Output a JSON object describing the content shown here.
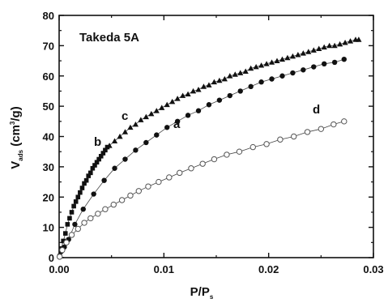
{
  "chart_data": {
    "type": "scatter",
    "title": "Takeda 5A",
    "xlabel": {
      "main": "P/P",
      "sub": "s"
    },
    "ylabel": {
      "main": "V",
      "sub": "ads",
      "unit_pre": " (cm",
      "unit_sup": "3",
      "unit_post": "/g)"
    },
    "xlim": [
      0,
      0.03
    ],
    "ylim": [
      0,
      80
    ],
    "xticks": [
      "0.00",
      "0.01",
      "0.02",
      "0.03"
    ],
    "yticks": [
      "0",
      "10",
      "20",
      "30",
      "40",
      "50",
      "60",
      "70",
      "80"
    ],
    "series_labels": [
      {
        "text": "a",
        "series": "a"
      },
      {
        "text": "b",
        "series": "b"
      },
      {
        "text": "c",
        "series": "c"
      },
      {
        "text": "d",
        "series": "d"
      }
    ],
    "series": [
      {
        "name": "a",
        "marker": "filled-circle",
        "x": [
          5e-05,
          0.0002,
          0.0005,
          0.0009,
          0.0015,
          0.0023,
          0.0033,
          0.0043,
          0.0053,
          0.0063,
          0.0073,
          0.0083,
          0.0093,
          0.0103,
          0.0113,
          0.0123,
          0.0133,
          0.0143,
          0.0153,
          0.0163,
          0.0173,
          0.0183,
          0.0193,
          0.0203,
          0.0213,
          0.0223,
          0.0233,
          0.0243,
          0.0253,
          0.0263,
          0.0272
        ],
        "y": [
          0.5,
          2,
          3.5,
          6,
          11,
          16,
          21,
          25.5,
          29.5,
          32.5,
          35.5,
          38,
          40.5,
          43,
          45,
          47,
          48.5,
          50.5,
          52,
          53.5,
          55,
          56.5,
          58,
          59,
          60,
          61,
          62,
          63,
          64,
          64.5,
          65.5
        ]
      },
      {
        "name": "b",
        "marker": "filled-square",
        "x": [
          5e-05,
          0.0002,
          0.0004,
          0.0006,
          0.0008,
          0.001,
          0.0012,
          0.0014,
          0.0016,
          0.0018,
          0.002,
          0.0022,
          0.0024,
          0.0026,
          0.0028,
          0.003,
          0.0032,
          0.0034,
          0.0036,
          0.0038,
          0.004,
          0.0042,
          0.0044,
          0.0046
        ],
        "y": [
          0.5,
          3,
          5.5,
          8,
          11,
          13,
          15,
          17,
          18.5,
          20,
          21.5,
          23,
          24.5,
          25.5,
          27,
          28,
          29.5,
          30.5,
          31.5,
          32.5,
          33.5,
          34.5,
          35.5,
          36.5
        ]
      },
      {
        "name": "c",
        "marker": "filled-triangle",
        "x": [
          0.0048,
          0.0053,
          0.0058,
          0.0063,
          0.0068,
          0.0073,
          0.0078,
          0.0083,
          0.0088,
          0.0093,
          0.0098,
          0.0103,
          0.0108,
          0.0113,
          0.0118,
          0.0123,
          0.0128,
          0.0133,
          0.0138,
          0.0143,
          0.0148,
          0.0153,
          0.0158,
          0.0163,
          0.0168,
          0.0173,
          0.0178,
          0.0183,
          0.0188,
          0.0193,
          0.0198,
          0.0203,
          0.0208,
          0.0213,
          0.0218,
          0.0223,
          0.0228,
          0.0233,
          0.0238,
          0.0243,
          0.0248,
          0.0253,
          0.0258,
          0.0263,
          0.0268,
          0.0273,
          0.0278,
          0.0283,
          0.0286
        ],
        "y": [
          37,
          38.5,
          40,
          41.5,
          43,
          44,
          45.5,
          46.5,
          47.5,
          48.5,
          49.5,
          50.5,
          51.5,
          52.5,
          53.5,
          54,
          55,
          55.5,
          56.5,
          57,
          58,
          58.5,
          59,
          60,
          60.5,
          61,
          61.5,
          62.5,
          63,
          63.5,
          64,
          64.5,
          65,
          65.5,
          66,
          66.5,
          67,
          67.5,
          68,
          68.5,
          69,
          69.5,
          70,
          70,
          70.5,
          71,
          71.5,
          72,
          72
        ]
      },
      {
        "name": "d",
        "marker": "open-circle",
        "x": [
          5e-05,
          0.0003,
          0.0007,
          0.0012,
          0.0018,
          0.0024,
          0.003,
          0.0037,
          0.0044,
          0.0052,
          0.006,
          0.0068,
          0.0076,
          0.0085,
          0.0095,
          0.0105,
          0.0115,
          0.0126,
          0.0137,
          0.0148,
          0.016,
          0.0172,
          0.0185,
          0.0198,
          0.0211,
          0.0224,
          0.0237,
          0.025,
          0.0262,
          0.0272
        ],
        "y": [
          0.3,
          2.5,
          5,
          7.5,
          9.5,
          11.5,
          13,
          14.5,
          16,
          17.5,
          19,
          20.5,
          22,
          23.5,
          25,
          26.5,
          28,
          29.5,
          31,
          32.5,
          34,
          35,
          36.5,
          37.5,
          39,
          40,
          41.5,
          42.5,
          44,
          45
        ]
      }
    ],
    "colors": {
      "filled": "#111111",
      "open_stroke": "#555555",
      "line": "#444444",
      "axis": "#111111"
    }
  }
}
